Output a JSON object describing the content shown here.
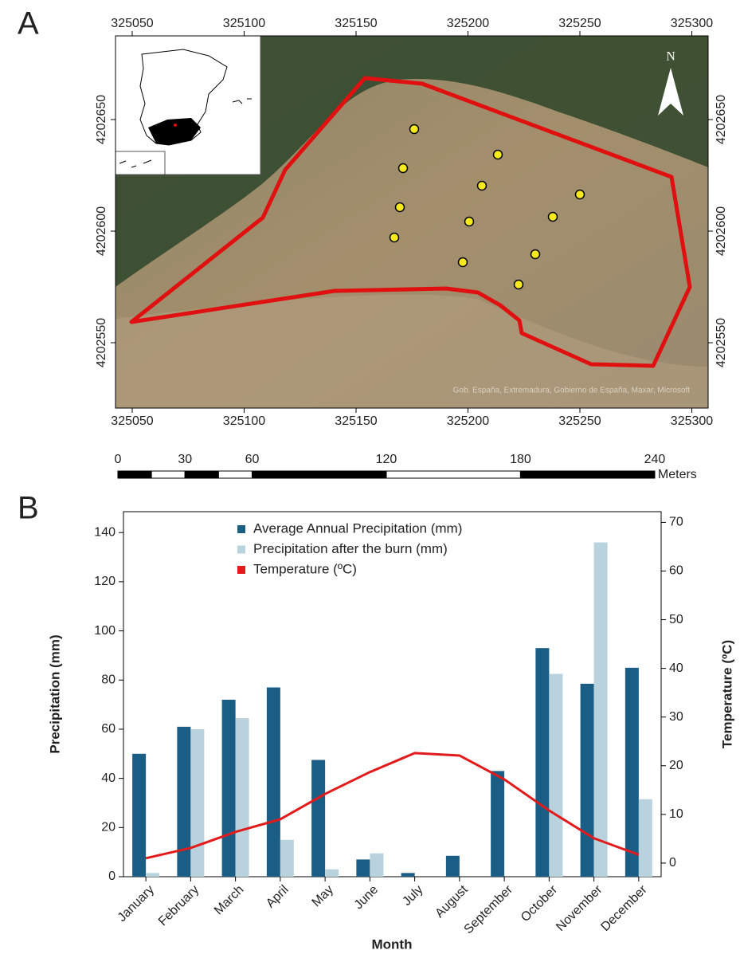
{
  "map": {
    "panel_label": "A",
    "xticks": [
      325050,
      325100,
      325150,
      325200,
      325250,
      325300
    ],
    "yticks": [
      4202550,
      4202600,
      4202650
    ],
    "north": "N",
    "attribution": "Gob. España, Extremadura, Gobierno de España, Maxar, Microsoft",
    "scale_bar": {
      "ticks": [
        0,
        30,
        60,
        120,
        180,
        240
      ],
      "unit": "Meters"
    }
  },
  "chart_data": {
    "type": "bar",
    "panel_label": "B",
    "categories": [
      "January",
      "February",
      "March",
      "April",
      "May",
      "June",
      "July",
      "August",
      "September",
      "October",
      "November",
      "December"
    ],
    "series": [
      {
        "name": "Average Annual Precipitation (mm)",
        "color": "#1b5e85",
        "values": [
          50,
          61,
          72,
          77,
          47.5,
          7,
          1.5,
          8.5,
          43,
          93,
          78.5,
          85
        ]
      },
      {
        "name": "Precipitation after the burn (mm)",
        "color": "#b9d3de",
        "values": [
          1.5,
          60,
          64.5,
          15,
          3,
          9.5,
          0,
          0,
          0,
          82.5,
          136,
          31.5
        ]
      },
      {
        "name": "Temperature (ºC)",
        "color": "#e31a1c",
        "type": "line",
        "axis": "y2",
        "values": [
          1,
          3.1,
          6.4,
          9,
          14.2,
          18.7,
          22.6,
          22.1,
          17.2,
          10.8,
          5.1,
          1.7
        ]
      }
    ],
    "x_label": "Month",
    "y_label": "Precipitation (mm)",
    "y2_label": "Temperature (ºC)",
    "ylim": [
      0,
      148.5
    ],
    "yticks": [
      0,
      20,
      40,
      60,
      80,
      100,
      120,
      140
    ],
    "y2lim": [
      -2.8,
      72.2
    ],
    "y2ticks": [
      0,
      10,
      20,
      30,
      40,
      50,
      60,
      70
    ],
    "legend": "top"
  }
}
